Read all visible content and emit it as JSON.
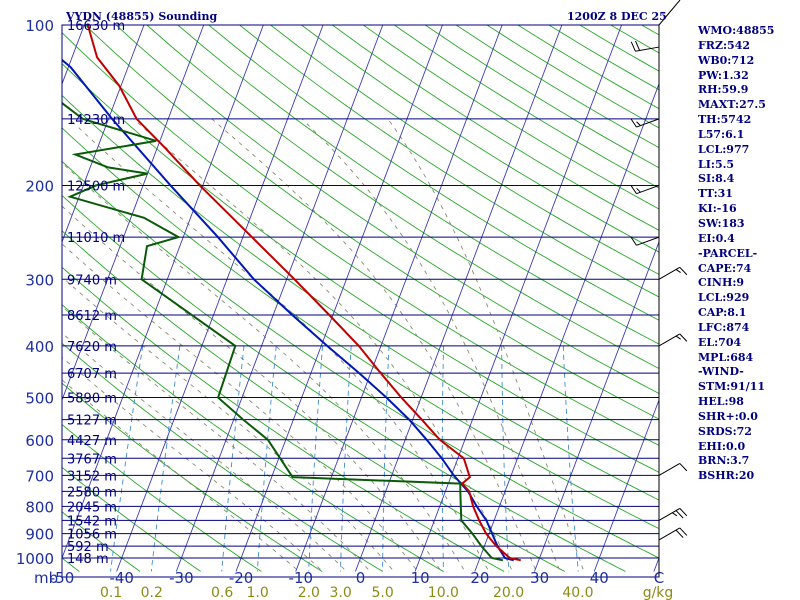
{
  "header": {
    "station": "VYDN (48855) Sounding",
    "time": "1200Z  8 DEC 25"
  },
  "indices": [
    "WMO:48855",
    "FRZ:542",
    "WB0:712",
    "PW:1.32",
    "RH:59.9",
    "MAXT:27.5",
    "TH:5742",
    "L57:6.1",
    "LCL:977",
    "LI:5.5",
    "SI:8.4",
    "TT:31",
    "KI:-16",
    "SW:183",
    "EI:0.4",
    "-PARCEL-",
    "CAPE:74",
    "CINH:9",
    "LCL:929",
    "CAP:8.1",
    "LFC:874",
    "EL:704",
    "MPL:684",
    "-WIND-",
    "STM:91/11",
    "HEL:98",
    "SHR+:0.0",
    "SRDS:72",
    "EHI:0.0",
    "BRN:3.7",
    "BSHR:20"
  ],
  "colors": {
    "isobar": "#000080",
    "isotherm": "#3c3cb4",
    "dry_adiabat": "#2aa82a",
    "moist_adiabat": "#8a8a72",
    "mixing_ratio": "#3c8cd2",
    "temperature": "#c00000",
    "dewpoint": "#0a5a0a",
    "parcel": "#0018b4",
    "axis_label": "#1e30a0",
    "mixing_label": "#8c8c14"
  },
  "chart_data": {
    "type": "skew-t",
    "title": "VYDN (48855) Sounding",
    "subtitle": "1200Z  8 DEC 25",
    "pressure_axis_unit": "mb",
    "pressure_ticks": [
      100,
      200,
      300,
      400,
      500,
      600,
      700,
      800,
      900,
      1000
    ],
    "temperature_ticks": [
      "-50",
      "-40",
      "-30",
      "-20",
      "-10",
      "0",
      "10",
      "20",
      "30",
      "40",
      "C"
    ],
    "temperature_ticks_values": [
      -50,
      -40,
      -30,
      -20,
      -10,
      0,
      10,
      20,
      30,
      40,
      50
    ],
    "mixing_ratio_ticks": [
      "0.1",
      "0.2",
      "0.6",
      "1.0",
      "2.0",
      "3.0",
      "5.0",
      "10.0",
      "20.0",
      "40.0",
      "g/kg"
    ],
    "mixing_ratio_values": [
      0.1,
      0.2,
      0.6,
      1.0,
      2.0,
      3.0,
      5.0,
      10.0,
      20.0,
      40.0
    ],
    "height_labels": [
      {
        "p": 100,
        "label": "16630 m"
      },
      {
        "p": 150,
        "label": "14230 m"
      },
      {
        "p": 200,
        "label": "12500 m"
      },
      {
        "p": 250,
        "label": "11010 m"
      },
      {
        "p": 300,
        "label": "9740 m"
      },
      {
        "p": 350,
        "label": "8612 m"
      },
      {
        "p": 400,
        "label": "7620 m"
      },
      {
        "p": 450,
        "label": "6707 m"
      },
      {
        "p": 500,
        "label": "5890 m"
      },
      {
        "p": 550,
        "label": "5127 m"
      },
      {
        "p": 600,
        "label": "4427 m"
      },
      {
        "p": 650,
        "label": "3767 m"
      },
      {
        "p": 700,
        "label": "3152 m"
      },
      {
        "p": 750,
        "label": "2580 m"
      },
      {
        "p": 800,
        "label": "2045 m"
      },
      {
        "p": 850,
        "label": "1542 m"
      },
      {
        "p": 900,
        "label": "1056 m"
      },
      {
        "p": 950,
        "label": "592 m"
      },
      {
        "p": 1000,
        "label": "148 m"
      }
    ],
    "temperature_profile": [
      {
        "p": 1010,
        "t": 27.0
      },
      {
        "p": 1000,
        "t": 25.0
      },
      {
        "p": 950,
        "t": 22.0
      },
      {
        "p": 900,
        "t": 19.5
      },
      {
        "p": 850,
        "t": 17.5
      },
      {
        "p": 800,
        "t": 15.6
      },
      {
        "p": 750,
        "t": 14.0
      },
      {
        "p": 725,
        "t": 12.3
      },
      {
        "p": 705,
        "t": 13.2
      },
      {
        "p": 700,
        "t": 13.0
      },
      {
        "p": 650,
        "t": 11.0
      },
      {
        "p": 600,
        "t": 5.8
      },
      {
        "p": 550,
        "t": 1.5
      },
      {
        "p": 500,
        "t": -3.3
      },
      {
        "p": 450,
        "t": -8.3
      },
      {
        "p": 400,
        "t": -13.7
      },
      {
        "p": 350,
        "t": -20.6
      },
      {
        "p": 300,
        "t": -28.7
      },
      {
        "p": 250,
        "t": -38.5
      },
      {
        "p": 200,
        "t": -50.5
      },
      {
        "p": 170,
        "t": -58.7
      },
      {
        "p": 150,
        "t": -65.3
      },
      {
        "p": 130,
        "t": -70.3
      },
      {
        "p": 115,
        "t": -75.8
      },
      {
        "p": 100,
        "t": -79.4
      }
    ],
    "dewpoint_profile": [
      {
        "p": 1010,
        "td": 24.0
      },
      {
        "p": 1000,
        "td": 22.0
      },
      {
        "p": 950,
        "td": 19.5
      },
      {
        "p": 900,
        "td": 17.2
      },
      {
        "p": 850,
        "td": 14.5
      },
      {
        "p": 750,
        "td": 12.5
      },
      {
        "p": 725,
        "td": 12.0
      },
      {
        "p": 705,
        "td": -16.5
      },
      {
        "p": 600,
        "td": -23.0
      },
      {
        "p": 550,
        "td": -28.4
      },
      {
        "p": 500,
        "td": -34.0
      },
      {
        "p": 400,
        "td": -34.4
      },
      {
        "p": 300,
        "td": -54.3
      },
      {
        "p": 260,
        "td": -55.5
      },
      {
        "p": 250,
        "td": -50.8
      },
      {
        "p": 230,
        "td": -57.8
      },
      {
        "p": 210,
        "td": -71.5
      },
      {
        "p": 200,
        "td": -67.9
      },
      {
        "p": 190,
        "td": -60.0
      },
      {
        "p": 185,
        "td": -67.0
      },
      {
        "p": 175,
        "td": -73.3
      },
      {
        "p": 165,
        "td": -60.6
      },
      {
        "p": 150,
        "td": -74.3
      },
      {
        "p": 130,
        "td": -83.7
      },
      {
        "p": 115,
        "td": -84.8
      },
      {
        "p": 100,
        "td": -88.0
      }
    ],
    "parcel_profile": [
      {
        "p": 1010,
        "t": 25.8
      },
      {
        "p": 1000,
        "t": 24.2
      },
      {
        "p": 950,
        "t": 22.2
      },
      {
        "p": 900,
        "t": 20.5
      },
      {
        "p": 850,
        "t": 18.7
      },
      {
        "p": 800,
        "t": 16.2
      },
      {
        "p": 750,
        "t": 13.8
      },
      {
        "p": 700,
        "t": 10.4
      },
      {
        "p": 650,
        "t": 7.3
      },
      {
        "p": 600,
        "t": 3.6
      },
      {
        "p": 550,
        "t": -0.6
      },
      {
        "p": 500,
        "t": -5.8
      },
      {
        "p": 450,
        "t": -11.9
      },
      {
        "p": 400,
        "t": -19.0
      },
      {
        "p": 350,
        "t": -26.8
      },
      {
        "p": 300,
        "t": -35.5
      },
      {
        "p": 250,
        "t": -44.2
      },
      {
        "p": 200,
        "t": -55.4
      },
      {
        "p": 150,
        "t": -69.4
      },
      {
        "p": 120,
        "t": -79.6
      },
      {
        "p": 110,
        "t": -84.9
      }
    ],
    "wind_barbs": [
      {
        "p": 110,
        "dir": 260,
        "kt": 20
      },
      {
        "p": 150,
        "dir": 250,
        "kt": 15
      },
      {
        "p": 200,
        "dir": 250,
        "kt": 15
      },
      {
        "p": 250,
        "dir": 250,
        "kt": 10
      },
      {
        "p": 300,
        "dir": 60,
        "kt": 15
      },
      {
        "p": 400,
        "dir": 60,
        "kt": 15
      },
      {
        "p": 700,
        "dir": 60,
        "kt": 10
      },
      {
        "p": 850,
        "dir": 60,
        "kt": 25
      },
      {
        "p": 925,
        "dir": 60,
        "kt": 20
      }
    ],
    "ylim_mb": [
      100,
      1050
    ],
    "xlim_c": [
      -50,
      50
    ]
  }
}
